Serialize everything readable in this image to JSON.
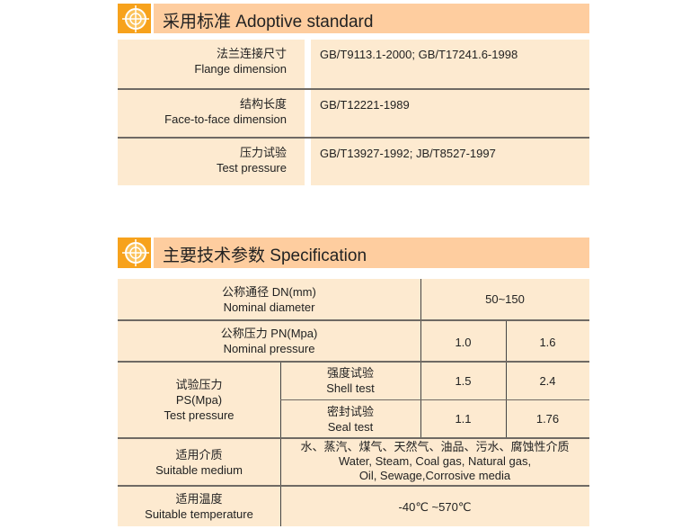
{
  "section1": {
    "title": "采用标准  Adoptive standard",
    "icon": "target-cross-icon",
    "rows": [
      {
        "zh": "法兰连接尺寸",
        "en": "Flange dimension",
        "value": "GB/T9113.1-2000;  GB/T17241.6-1998"
      },
      {
        "zh": "结构长度",
        "en": "Face-to-face dimension",
        "value": "GB/T12221-1989"
      },
      {
        "zh": "压力试验",
        "en": "Test pressure",
        "value": "GB/T13927-1992;  JB/T8527-1997"
      }
    ]
  },
  "section2": {
    "title": "主要技术参数  Specification",
    "icon": "target-cross-icon",
    "nominal_diameter": {
      "zh": "公称通径  DN(mm)",
      "en": "Nominal diameter",
      "value": "50~150"
    },
    "nominal_pressure": {
      "zh": "公称压力  PN(Mpa)",
      "en": "Nominal pressure",
      "values": [
        "1.0",
        "1.6"
      ]
    },
    "test_pressure": {
      "zh": "试验压力",
      "unit": "PS(Mpa)",
      "en": "Test pressure",
      "shell": {
        "zh": "强度试验",
        "en": "Shell test",
        "values": [
          "1.5",
          "2.4"
        ]
      },
      "seal": {
        "zh": "密封试验",
        "en": "Seal test",
        "values": [
          "1.1",
          "1.76"
        ]
      }
    },
    "medium": {
      "zh": "适用介质",
      "en": "Suitable medium",
      "value_zh": "水、蒸汽、煤气、天然气、油品、污水、腐蚀性介质",
      "value_en1": "Water, Steam, Coal gas, Natural gas,",
      "value_en2": "Oil, Sewage,Corrosive media"
    },
    "temperature": {
      "zh": "适用温度",
      "en": "Suitable temperature",
      "value": "-40℃ ~570℃"
    }
  },
  "colors": {
    "header": "#fecd9f",
    "icon": "#f7a21c",
    "cell": "#fdead0"
  }
}
